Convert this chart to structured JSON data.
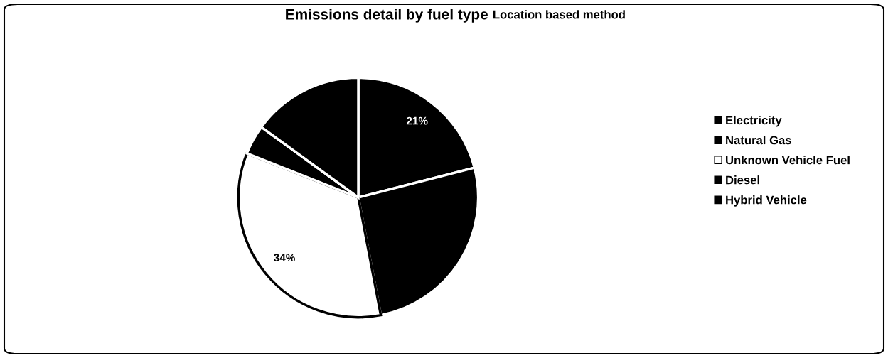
{
  "chart_data": {
    "type": "pie",
    "title": "Emissions detail by fuel type",
    "subtitle": "Location based method",
    "categories": [
      "Electricity",
      "Natural Gas",
      "Unknown Vehicle Fuel",
      "Diesel",
      "Hybrid Vehicle"
    ],
    "values": [
      21,
      26,
      34,
      4,
      15
    ],
    "colors": [
      "#000000",
      "#000000",
      "#ffffff",
      "#000000",
      "#000000"
    ],
    "value_labels": [
      "21%",
      null,
      "34%",
      null,
      null
    ],
    "legend": "right"
  }
}
